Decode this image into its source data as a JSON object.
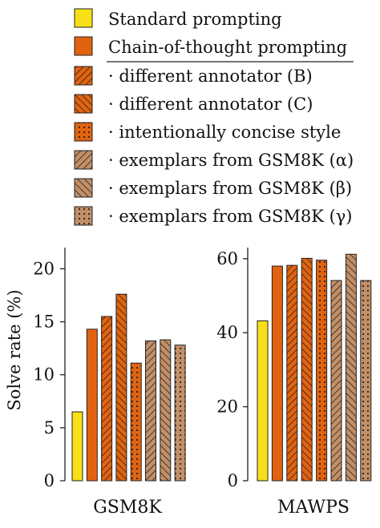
{
  "legend": [
    {
      "label": "Standard prompting",
      "style": "solid-yellow"
    },
    {
      "label": "Chain-of-thought prompting",
      "style": "solid-orange"
    },
    {
      "label": "· different annotator (B)",
      "style": "hatch-forward"
    },
    {
      "label": "· different annotator (C)",
      "style": "hatch-back"
    },
    {
      "label": "· intentionally concise style",
      "style": "dots-orange"
    },
    {
      "label": "· exemplars from GSM8K (α)",
      "style": "hatch-forward-tan"
    },
    {
      "label": "· exemplars from GSM8K (β)",
      "style": "hatch-back-tan"
    },
    {
      "label": "· exemplars from GSM8K (γ)",
      "style": "dots-tan"
    }
  ],
  "colors": {
    "yellow": "#f7e017",
    "orange": "#e2630f",
    "tan": "#c28f67",
    "axis": "#222222"
  },
  "chart_data": [
    {
      "type": "bar",
      "title": "",
      "xlabel": "GSM8K",
      "ylabel": "Solve rate (%)",
      "ylim": [
        0,
        22
      ],
      "yticks": [
        0,
        5,
        10,
        15,
        20
      ],
      "grid": false,
      "legend_position": "top",
      "categories": [
        "Standard prompting",
        "Chain-of-thought prompting",
        "· different annotator (B)",
        "· different annotator (C)",
        "· intentionally concise style",
        "· exemplars from GSM8K (α)",
        "· exemplars from GSM8K (β)",
        "· exemplars from GSM8K (γ)"
      ],
      "values": [
        6.5,
        14.3,
        15.5,
        17.6,
        11.1,
        13.2,
        13.3,
        12.8
      ]
    },
    {
      "type": "bar",
      "title": "",
      "xlabel": "MAWPS",
      "ylabel": "",
      "ylim": [
        0,
        63
      ],
      "yticks": [
        0,
        20,
        40,
        60
      ],
      "grid": false,
      "legend_position": "top",
      "categories": [
        "Standard prompting",
        "Chain-of-thought prompting",
        "· different annotator (B)",
        "· different annotator (C)",
        "· intentionally concise style",
        "· exemplars from GSM8K (α)",
        "· exemplars from GSM8K (β)",
        "· exemplars from GSM8K (γ)"
      ],
      "values": [
        43.2,
        58.0,
        58.2,
        60.1,
        59.6,
        54.1,
        61.2,
        54.1
      ]
    }
  ]
}
